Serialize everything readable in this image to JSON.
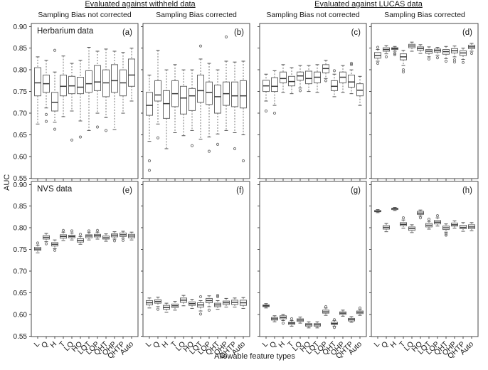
{
  "figure": {
    "group_headers": [
      "Evaluated against withheld data",
      "Evaluated against LUCAS data"
    ],
    "col_headers": [
      "Sampling Bias not corrected",
      "Sampling Bias corrected",
      "Sampling Bias not corrected",
      "Sampling Bias corrected"
    ],
    "row_labels": [
      "Herbarium data",
      "NVS data"
    ],
    "ylabel": "AUC",
    "xlabel": "Allowable feature types"
  },
  "chart_data": {
    "type": "boxplot",
    "layout": "2 rows x 4 columns of panels, shared axes",
    "categories": [
      "L",
      "Q",
      "H",
      "T",
      "LQ",
      "HQ",
      "LQT",
      "LQP",
      "QHT",
      "QHP",
      "QHTP",
      "Auto"
    ],
    "xlabel": "Allowable feature types",
    "ylabel": "AUC",
    "ylim": [
      0.55,
      0.9
    ],
    "yticks": [
      0.9,
      0.85,
      0.8,
      0.75,
      0.7,
      0.65,
      0.6,
      0.55
    ],
    "box_format": [
      "whisker_low",
      "q1",
      "median",
      "q3",
      "whisker_high"
    ],
    "panels": [
      {
        "id": "a",
        "label": "(a)",
        "row": "Herbarium data",
        "group": "Evaluated against withheld data",
        "column": "Sampling Bias not corrected",
        "boxes": [
          [
            0.675,
            0.74,
            0.77,
            0.805,
            0.83
          ],
          [
            0.712,
            0.748,
            0.768,
            0.788,
            0.822
          ],
          [
            0.679,
            0.705,
            0.725,
            0.748,
            0.795
          ],
          [
            0.692,
            0.74,
            0.762,
            0.788,
            0.832
          ],
          [
            0.705,
            0.745,
            0.763,
            0.785,
            0.815
          ],
          [
            0.682,
            0.745,
            0.76,
            0.783,
            0.822
          ],
          [
            0.66,
            0.748,
            0.768,
            0.798,
            0.852
          ],
          [
            0.7,
            0.752,
            0.772,
            0.81,
            0.843
          ],
          [
            0.69,
            0.738,
            0.77,
            0.8,
            0.848
          ],
          [
            0.662,
            0.748,
            0.775,
            0.812,
            0.843
          ],
          [
            0.7,
            0.74,
            0.77,
            0.8,
            0.84
          ],
          [
            0.728,
            0.762,
            0.788,
            0.825,
            0.85
          ]
        ],
        "outliers": [
          [],
          [
            0.697,
            0.681
          ],
          [
            0.845,
            0.663
          ],
          [],
          [
            0.638
          ],
          [
            0.645
          ],
          [],
          [
            0.668
          ],
          [
            0.66
          ],
          [],
          [],
          []
        ]
      },
      {
        "id": "b",
        "label": "(b)",
        "row": "Herbarium data",
        "group": "Evaluated against withheld data",
        "column": "Sampling Bias corrected",
        "boxes": [
          [
            0.635,
            0.695,
            0.718,
            0.748,
            0.788
          ],
          [
            0.675,
            0.728,
            0.742,
            0.775,
            0.845
          ],
          [
            0.618,
            0.688,
            0.722,
            0.752,
            0.8
          ],
          [
            0.655,
            0.715,
            0.745,
            0.775,
            0.812
          ],
          [
            0.648,
            0.698,
            0.735,
            0.762,
            0.8
          ],
          [
            0.66,
            0.706,
            0.74,
            0.757,
            0.8
          ],
          [
            0.64,
            0.725,
            0.752,
            0.788,
            0.825
          ],
          [
            0.645,
            0.72,
            0.748,
            0.772,
            0.815
          ],
          [
            0.652,
            0.7,
            0.738,
            0.765,
            0.8
          ],
          [
            0.66,
            0.718,
            0.745,
            0.772,
            0.82
          ],
          [
            0.655,
            0.715,
            0.74,
            0.772,
            0.818
          ],
          [
            0.65,
            0.712,
            0.74,
            0.775,
            0.82
          ]
        ],
        "outliers": [
          [
            0.59,
            0.568
          ],
          [
            0.643
          ],
          [],
          [],
          [],
          [
            0.625
          ],
          [
            0.855
          ],
          [
            0.612
          ],
          [
            0.628
          ],
          [
            0.876
          ],
          [
            0.618
          ],
          [
            0.59
          ]
        ]
      },
      {
        "id": "c",
        "label": "(c)",
        "row": "Herbarium data",
        "group": "Evaluated against LUCAS data",
        "column": "Sampling Bias not corrected",
        "boxes": [
          [
            0.728,
            0.75,
            0.763,
            0.776,
            0.79
          ],
          [
            0.718,
            0.75,
            0.762,
            0.782,
            0.798
          ],
          [
            0.748,
            0.77,
            0.78,
            0.795,
            0.812
          ],
          [
            0.745,
            0.763,
            0.773,
            0.785,
            0.805
          ],
          [
            0.758,
            0.776,
            0.786,
            0.795,
            0.81
          ],
          [
            0.75,
            0.768,
            0.78,
            0.797,
            0.81
          ],
          [
            0.748,
            0.77,
            0.783,
            0.795,
            0.812
          ],
          [
            0.78,
            0.793,
            0.803,
            0.812,
            0.822
          ],
          [
            0.738,
            0.752,
            0.762,
            0.775,
            0.79
          ],
          [
            0.748,
            0.77,
            0.783,
            0.795,
            0.81
          ],
          [
            0.745,
            0.76,
            0.772,
            0.788,
            0.8
          ],
          [
            0.718,
            0.74,
            0.753,
            0.768,
            0.785
          ]
        ],
        "outliers": [
          [
            0.705
          ],
          [
            0.7
          ],
          [],
          [],
          [
            0.752
          ],
          [],
          [],
          [
            0.775
          ],
          [
            0.798
          ],
          [],
          [
            0.812,
            0.815
          ],
          []
        ]
      },
      {
        "id": "d",
        "label": "(d)",
        "row": "Herbarium data",
        "group": "Evaluated against LUCAS data",
        "column": "Sampling Bias corrected",
        "boxes": [
          [
            0.82,
            0.827,
            0.833,
            0.84,
            0.847
          ],
          [
            0.837,
            0.843,
            0.847,
            0.851,
            0.856
          ],
          [
            0.843,
            0.847,
            0.849,
            0.851,
            0.854
          ],
          [
            0.81,
            0.823,
            0.83,
            0.837,
            0.845
          ],
          [
            0.843,
            0.851,
            0.855,
            0.859,
            0.864
          ],
          [
            0.838,
            0.845,
            0.849,
            0.853,
            0.858
          ],
          [
            0.83,
            0.838,
            0.843,
            0.847,
            0.853
          ],
          [
            0.834,
            0.841,
            0.845,
            0.848,
            0.852
          ],
          [
            0.826,
            0.836,
            0.842,
            0.847,
            0.854
          ],
          [
            0.83,
            0.839,
            0.844,
            0.849,
            0.855
          ],
          [
            0.824,
            0.833,
            0.839,
            0.844,
            0.85
          ],
          [
            0.843,
            0.849,
            0.853,
            0.857,
            0.861
          ]
        ],
        "outliers": [
          [
            0.815,
            0.852
          ],
          [
            0.83
          ],
          [
            0.838,
            0.835
          ],
          [
            0.8,
            0.795
          ],
          [],
          [],
          [
            0.825
          ],
          [
            0.828
          ],
          [
            0.82
          ],
          [
            0.823,
            0.818
          ],
          [
            0.817
          ],
          [
            0.838
          ]
        ]
      },
      {
        "id": "e",
        "label": "(e)",
        "row": "NVS data",
        "group": "Evaluated against withheld data",
        "column": "Sampling Bias not corrected",
        "boxes": [
          [
            0.742,
            0.748,
            0.751,
            0.755,
            0.76
          ],
          [
            0.768,
            0.774,
            0.778,
            0.782,
            0.787
          ],
          [
            0.752,
            0.758,
            0.762,
            0.766,
            0.772
          ],
          [
            0.77,
            0.776,
            0.78,
            0.784,
            0.79
          ],
          [
            0.772,
            0.777,
            0.78,
            0.783,
            0.788
          ],
          [
            0.762,
            0.767,
            0.771,
            0.775,
            0.78
          ],
          [
            0.772,
            0.777,
            0.781,
            0.784,
            0.789
          ],
          [
            0.774,
            0.779,
            0.782,
            0.785,
            0.79
          ],
          [
            0.769,
            0.774,
            0.777,
            0.781,
            0.786
          ],
          [
            0.774,
            0.779,
            0.783,
            0.786,
            0.791
          ],
          [
            0.776,
            0.78,
            0.784,
            0.788,
            0.792
          ],
          [
            0.772,
            0.777,
            0.781,
            0.785,
            0.79
          ]
        ],
        "outliers": [
          [
            0.765
          ],
          [
            0.763
          ],
          [
            0.748
          ],
          [
            0.794
          ],
          [
            0.793
          ],
          [
            0.785
          ],
          [
            0.793
          ],
          [
            0.794
          ],
          [],
          [
            0.77
          ],
          [
            0.771
          ],
          []
        ]
      },
      {
        "id": "f",
        "label": "(f)",
        "row": "NVS data",
        "group": "Evaluated against withheld data",
        "column": "Sampling Bias corrected",
        "boxes": [
          [
            0.615,
            0.622,
            0.627,
            0.632,
            0.638
          ],
          [
            0.618,
            0.626,
            0.63,
            0.634,
            0.64
          ],
          [
            0.605,
            0.612,
            0.616,
            0.621,
            0.626
          ],
          [
            0.61,
            0.616,
            0.62,
            0.624,
            0.63
          ],
          [
            0.62,
            0.628,
            0.633,
            0.638,
            0.644
          ],
          [
            0.614,
            0.621,
            0.625,
            0.629,
            0.635
          ],
          [
            0.608,
            0.617,
            0.622,
            0.627,
            0.632
          ],
          [
            0.618,
            0.627,
            0.632,
            0.637,
            0.643
          ],
          [
            0.612,
            0.618,
            0.622,
            0.626,
            0.632
          ],
          [
            0.617,
            0.623,
            0.627,
            0.631,
            0.637
          ],
          [
            0.617,
            0.623,
            0.628,
            0.633,
            0.638
          ],
          [
            0.614,
            0.621,
            0.627,
            0.633,
            0.639
          ]
        ],
        "outliers": [
          [],
          [
            0.612
          ],
          [],
          [],
          [],
          [],
          [
            0.641,
            0.601
          ],
          [
            0.61
          ],
          [
            0.641,
            0.644
          ],
          [],
          [],
          []
        ]
      },
      {
        "id": "g",
        "label": "(g)",
        "row": "NVS data",
        "group": "Evaluated against LUCAS data",
        "column": "Sampling Bias not corrected",
        "boxes": [
          [
            0.615,
            0.618,
            0.62,
            0.622,
            0.625
          ],
          [
            0.583,
            0.587,
            0.59,
            0.593,
            0.597
          ],
          [
            0.586,
            0.59,
            0.593,
            0.597,
            0.6
          ],
          [
            0.573,
            0.577,
            0.58,
            0.582,
            0.586
          ],
          [
            0.58,
            0.584,
            0.587,
            0.59,
            0.594
          ],
          [
            0.569,
            0.573,
            0.576,
            0.579,
            0.583
          ],
          [
            0.569,
            0.573,
            0.576,
            0.579,
            0.583
          ],
          [
            0.598,
            0.603,
            0.606,
            0.61,
            0.615
          ],
          [
            0.573,
            0.577,
            0.579,
            0.582,
            0.586
          ],
          [
            0.596,
            0.6,
            0.603,
            0.606,
            0.61
          ],
          [
            0.582,
            0.585,
            0.588,
            0.591,
            0.595
          ],
          [
            0.598,
            0.602,
            0.605,
            0.608,
            0.612
          ]
        ],
        "outliers": [
          [],
          [],
          [
            0.58
          ],
          [
            0.59
          ],
          [],
          [],
          [],
          [
            0.618
          ],
          [
            0.57,
            0.588
          ],
          [],
          [],
          [
            0.615
          ]
        ]
      },
      {
        "id": "h",
        "label": "(h)",
        "row": "NVS data",
        "group": "Evaluated against LUCAS data",
        "column": "Sampling Bias corrected",
        "boxes": [
          [
            0.835,
            0.837,
            0.838,
            0.84,
            0.842
          ],
          [
            0.791,
            0.797,
            0.801,
            0.805,
            0.81
          ],
          [
            0.84,
            0.842,
            0.844,
            0.845,
            0.847
          ],
          [
            0.799,
            0.805,
            0.808,
            0.812,
            0.818
          ],
          [
            0.789,
            0.794,
            0.798,
            0.802,
            0.807
          ],
          [
            0.827,
            0.831,
            0.834,
            0.838,
            0.841
          ],
          [
            0.797,
            0.802,
            0.806,
            0.81,
            0.815
          ],
          [
            0.804,
            0.809,
            0.813,
            0.817,
            0.823
          ],
          [
            0.79,
            0.796,
            0.8,
            0.804,
            0.809
          ],
          [
            0.799,
            0.804,
            0.807,
            0.811,
            0.816
          ],
          [
            0.792,
            0.798,
            0.801,
            0.806,
            0.812
          ],
          [
            0.793,
            0.798,
            0.802,
            0.807,
            0.812
          ]
        ],
        "outliers": [
          [],
          [],
          [],
          [
            0.823
          ],
          [],
          [
            0.823
          ],
          [
            0.82
          ],
          [
            0.828
          ],
          [
            0.786,
            0.783
          ],
          [],
          [],
          []
        ]
      }
    ]
  }
}
